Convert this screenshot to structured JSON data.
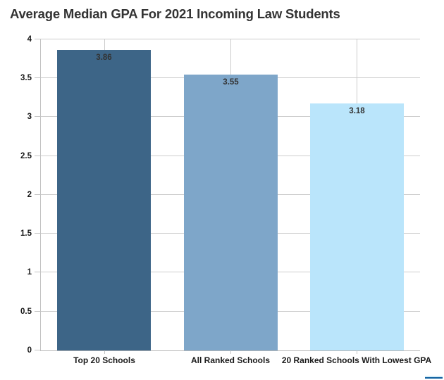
{
  "title": "Average Median GPA For 2021 Incoming Law Students",
  "chart_data": {
    "type": "bar",
    "title": "Average Median GPA For 2021 Incoming Law Students",
    "categories": [
      "Top 20 Schools",
      "All Ranked Schools",
      "20 Ranked Schools With Lowest GPA"
    ],
    "values": [
      3.86,
      3.55,
      3.18
    ],
    "value_labels": [
      "3.86",
      "3.55",
      "3.18"
    ],
    "bar_colors": [
      "#3d6587",
      "#7ea6c9",
      "#bae5fb"
    ],
    "xlabel": "",
    "ylabel": "",
    "ylim": [
      0,
      4
    ],
    "ytick_step": 0.5,
    "ytick_labels": [
      "0",
      "0.5",
      "1",
      "1.5",
      "2",
      "2.5",
      "3",
      "3.5",
      "4"
    ],
    "grid": "horizontal lines every 0.5 plus vertical line at each category center",
    "legend_position": "none",
    "bar_value_label_position": "inside-top-center"
  },
  "style": {
    "gridline_color": "#cccccc",
    "axis_color": "#b5b5b5",
    "tick_label_color": "#1a1a1a",
    "title_color": "#333333",
    "value_label_color": "#333333",
    "background": "#ffffff",
    "partial_logo_dark": "#0e5f9e",
    "partial_logo_light": "#d4ecf8"
  }
}
